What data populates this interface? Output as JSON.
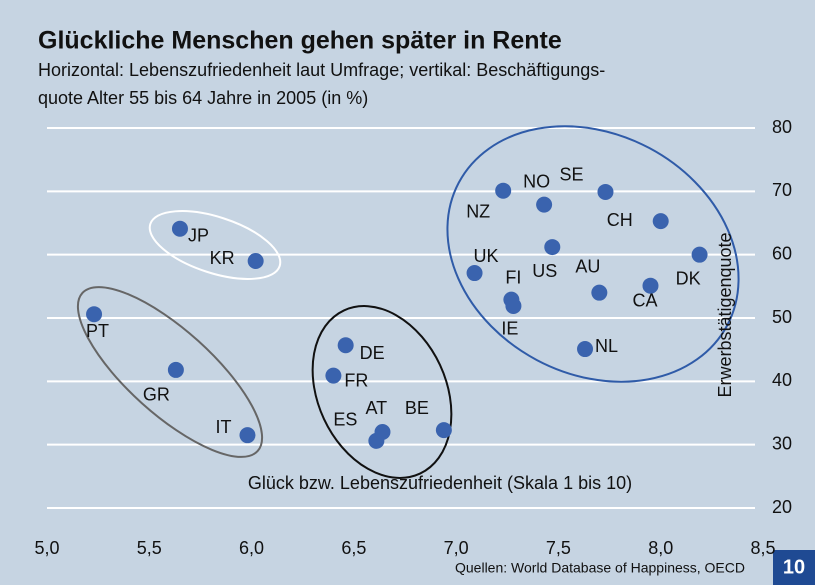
{
  "chart_data": {
    "type": "scatter",
    "title": "Glückliche Menschen gehen später in Rente",
    "subtitle_lines": [
      "Horizontal: Lebenszufriedenheit laut Umfrage; vertikal: Beschäftigungs-",
      "quote Alter 55 bis 64 Jahre in 2005 (in %)"
    ],
    "x_axis_label": "Glück bzw. Lebenszufriedenheit (Skala 1 bis 10)",
    "y_axis_label": "Erwerbstätigenquote",
    "source": "Quellen: World Database of Happiness, OECD",
    "page_number": "10",
    "color": "#3a63ae",
    "grid": true,
    "point_labels": [
      "JP",
      "KR",
      "PT",
      "GR",
      "IT",
      "DE",
      "FR",
      "ES",
      "AT",
      "BE",
      "NZ",
      "NO",
      "SE",
      "CH",
      "UK",
      "US",
      "DK",
      "FI",
      "IE",
      "AU",
      "CA",
      "NL"
    ],
    "x": [
      5.65,
      6.02,
      5.23,
      5.63,
      5.98,
      6.46,
      6.4,
      6.61,
      6.64,
      6.94,
      7.23,
      7.43,
      7.73,
      8.0,
      7.09,
      7.47,
      8.19,
      7.27,
      7.28,
      7.7,
      7.95,
      7.63
    ],
    "values": [
      64.1,
      59.0,
      50.6,
      41.8,
      31.5,
      45.7,
      40.9,
      30.6,
      32.0,
      32.3,
      70.1,
      67.9,
      69.9,
      65.3,
      57.1,
      61.2,
      60.0,
      52.9,
      51.9,
      54.0,
      55.1,
      45.1
    ],
    "xlim": [
      5.0,
      8.5
    ],
    "xticks": [
      {
        "value": 5.0,
        "label": "5,0"
      },
      {
        "value": 5.5,
        "label": "5,5"
      },
      {
        "value": 6.0,
        "label": "6,0"
      },
      {
        "value": 6.5,
        "label": "6,5"
      },
      {
        "value": 7.0,
        "label": "7,0"
      },
      {
        "value": 7.5,
        "label": "7,5"
      },
      {
        "value": 8.0,
        "label": "8,0"
      },
      {
        "value": 8.5,
        "label": "8,5"
      }
    ],
    "ylim": [
      20,
      80
    ],
    "yticks": [
      20,
      30,
      40,
      50,
      60,
      70,
      80
    ]
  }
}
